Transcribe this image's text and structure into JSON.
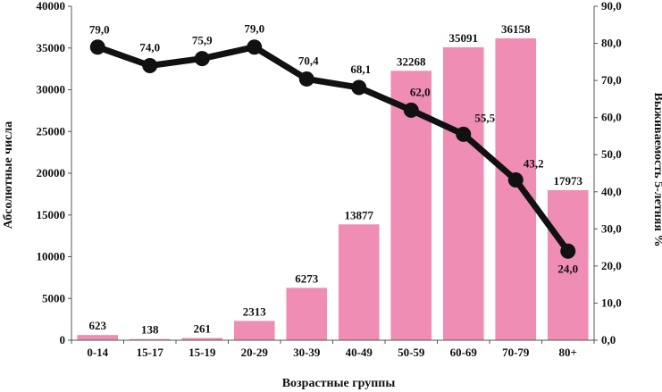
{
  "chart_data": {
    "type": "bar",
    "categories": [
      "0-14",
      "15-17",
      "15-19",
      "20-29",
      "30-39",
      "40-49",
      "50-59",
      "60-69",
      "70-79",
      "80+"
    ],
    "series": [
      {
        "type": "bar",
        "axis": "left",
        "color": "#ef8db4",
        "values": [
          623,
          138,
          261,
          2313,
          6273,
          13877,
          32268,
          35091,
          36158,
          17973
        ],
        "labels": [
          "623",
          "138",
          "261",
          "2313",
          "6273",
          "13877",
          "32268",
          "35091",
          "36158",
          "17973"
        ]
      },
      {
        "type": "line",
        "axis": "right",
        "color": "#111111",
        "values": [
          79.0,
          74.0,
          75.9,
          79.0,
          70.4,
          68.1,
          62.0,
          55.5,
          43.2,
          24.0
        ],
        "labels": [
          "79,0",
          "74,0",
          "75,9",
          "79,0",
          "70,4",
          "68,1",
          "62,0",
          "55,5",
          "43,2",
          "24,0"
        ]
      }
    ],
    "xlabel": "Возрастные группы",
    "ylabel_left": "Абсолютные числа",
    "ylabel_right": "Выживаемость 5-летняя %",
    "ylim_left": [
      0,
      40000
    ],
    "ylim_right": [
      0,
      90
    ],
    "yticks_left": [
      "0",
      "5000",
      "10000",
      "15000",
      "20000",
      "25000",
      "30000",
      "35000",
      "40000"
    ],
    "yticks_right": [
      "0,0",
      "10,0",
      "20,0",
      "30,0",
      "40,0",
      "50,0",
      "60,0",
      "70,0",
      "80,0",
      "90,0"
    ],
    "grid": false,
    "legend": "none"
  }
}
